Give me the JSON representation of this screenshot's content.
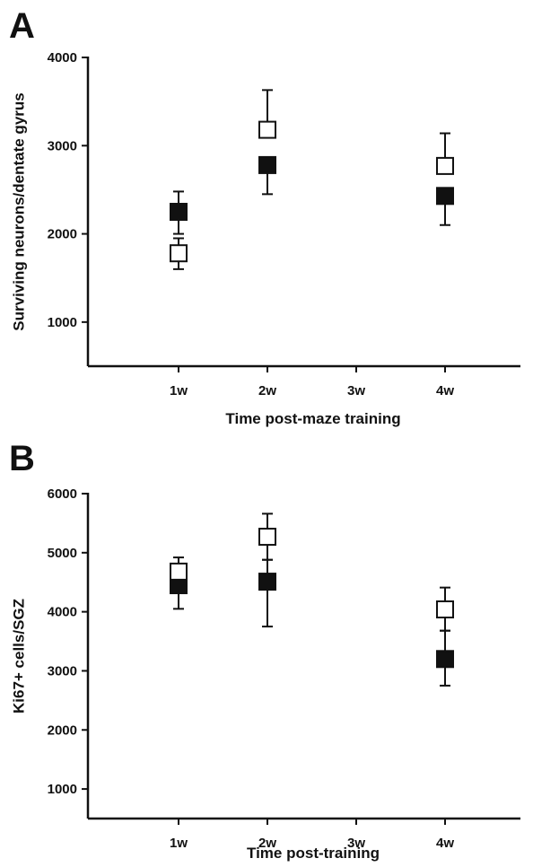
{
  "chart_data": [
    {
      "panel": "A",
      "type": "scatter",
      "xlabel": "Time post-maze training",
      "ylabel": "Surviving neurons/dentate gyrus",
      "categories": [
        "1w",
        "2w",
        "3w",
        "4w"
      ],
      "yticks": [
        1000,
        2000,
        3000,
        4000
      ],
      "ylim": [
        500,
        4000
      ],
      "series": [
        {
          "marker": "filled-square",
          "color": "#111111",
          "points": [
            {
              "x": "1w",
              "y": 2250,
              "err_low": 2000,
              "err_high": 2480
            },
            {
              "x": "2w",
              "y": 2780,
              "err_low": 2450,
              "err_high": 2780
            },
            {
              "x": "4w",
              "y": 2430,
              "err_low": 2100,
              "err_high": 2430
            }
          ]
        },
        {
          "marker": "open-square",
          "color": "#ffffff",
          "points": [
            {
              "x": "1w",
              "y": 1780,
              "err_low": 1600,
              "err_high": 1950
            },
            {
              "x": "2w",
              "y": 3180,
              "err_low": 3180,
              "err_high": 3630
            },
            {
              "x": "4w",
              "y": 2770,
              "err_low": 2770,
              "err_high": 3140
            }
          ]
        }
      ]
    },
    {
      "panel": "B",
      "type": "scatter",
      "xlabel": "Time post-training",
      "ylabel": "Ki67+ cells/SGZ",
      "categories": [
        "1w",
        "2w",
        "3w",
        "4w"
      ],
      "yticks": [
        1000,
        2000,
        3000,
        4000,
        5000,
        6000
      ],
      "ylim": [
        500,
        6000
      ],
      "series": [
        {
          "marker": "filled-square",
          "color": "#111111",
          "points": [
            {
              "x": "1w",
              "y": 4450,
              "err_low": 4050,
              "err_high": 4450
            },
            {
              "x": "2w",
              "y": 4510,
              "err_low": 3750,
              "err_high": 4880
            },
            {
              "x": "4w",
              "y": 3200,
              "err_low": 2750,
              "err_high": 3680
            }
          ]
        },
        {
          "marker": "open-square",
          "color": "#ffffff",
          "points": [
            {
              "x": "1w",
              "y": 4680,
              "err_low": 4680,
              "err_high": 4920
            },
            {
              "x": "2w",
              "y": 5270,
              "err_low": 4880,
              "err_high": 5660
            },
            {
              "x": "4w",
              "y": 4040,
              "err_low": 3680,
              "err_high": 4410
            }
          ]
        }
      ]
    }
  ]
}
